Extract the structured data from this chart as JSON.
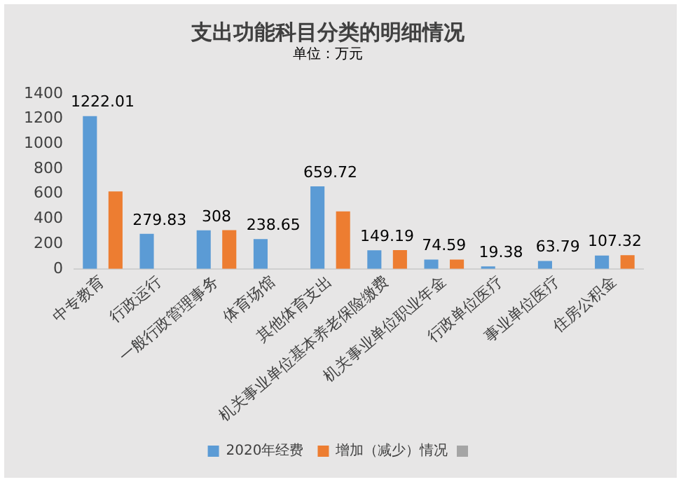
{
  "chart_data": {
    "type": "bar",
    "title": "支出功能科目分类的明细情况",
    "subtitle": "单位：万元",
    "categories": [
      "中专教育",
      "行政运行",
      "一般行政管理事务",
      "体育场馆",
      "其他体育支出",
      "机关事业单位基本养老保险缴费",
      "机关事业单位职业年金",
      "行政单位医疗",
      "事业单位医疗",
      "住房公积金"
    ],
    "series": [
      {
        "name": "2020年经费",
        "color": "#5b9bd5",
        "values": [
          1222.01,
          279.83,
          308,
          238.65,
          659.72,
          149.19,
          74.59,
          19.38,
          63.79,
          107.32
        ],
        "value_labels": [
          "1222.01",
          "279.83",
          "308",
          "238.65",
          "659.72",
          "149.19",
          "74.59",
          "19.38",
          "63.79",
          "107.32"
        ]
      },
      {
        "name": "增加（减少）情况",
        "color": "#ed7d31",
        "values": [
          620,
          null,
          310,
          null,
          460,
          150,
          75,
          null,
          null,
          110
        ]
      }
    ],
    "ylim": [
      0,
      1400
    ],
    "yticks": [
      0,
      200,
      400,
      600,
      800,
      1000,
      1200,
      1400
    ],
    "grid": false,
    "legend": "bottom"
  }
}
